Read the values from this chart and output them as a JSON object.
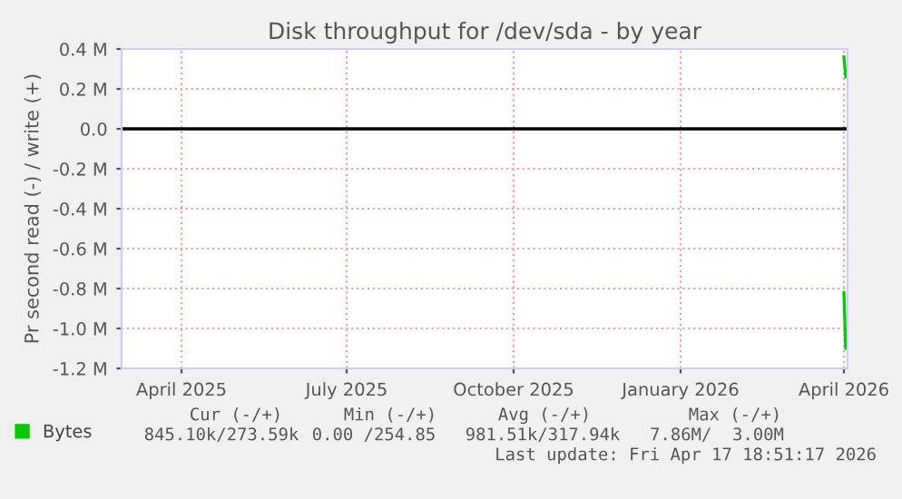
{
  "chart_data": {
    "type": "line",
    "title": "Disk throughput for /dev/sda - by year",
    "ylabel": "Pr second read (-) / write (+)",
    "xlim": [
      "2025-03-13",
      "2026-04-17"
    ],
    "xticks": [
      {
        "value": "2025-04-15",
        "label": "April 2025"
      },
      {
        "value": "2025-07-15",
        "label": "July 2025"
      },
      {
        "value": "2025-10-15",
        "label": "October 2025"
      },
      {
        "value": "2026-01-15",
        "label": "January 2026"
      },
      {
        "value": "2026-04-15",
        "label": "April 2026"
      }
    ],
    "ylim": [
      -1200000,
      400000
    ],
    "yticks": [
      {
        "value": 400000,
        "label": "0.4 M"
      },
      {
        "value": 200000,
        "label": "0.2 M"
      },
      {
        "value": 0,
        "label": "0.0"
      },
      {
        "value": -200000,
        "label": "-0.2 M"
      },
      {
        "value": -400000,
        "label": "-0.4 M"
      },
      {
        "value": -600000,
        "label": "-0.6 M"
      },
      {
        "value": -800000,
        "label": "-0.8 M"
      },
      {
        "value": -1000000,
        "label": "-1.0 M"
      },
      {
        "value": -1200000,
        "label": "-1.2 M"
      }
    ],
    "series": [
      {
        "name": "Bytes",
        "color": "#00cc00",
        "x": [
          "2026-04-15",
          "2026-04-16"
        ],
        "values": [
          360000,
          260000
        ]
      },
      {
        "color": "#00cc00",
        "x": [
          "2026-04-15",
          "2026-04-16"
        ],
        "values": [
          -820000,
          -1100000
        ]
      }
    ],
    "ref_lines": [
      {
        "axis": "y",
        "value": 0,
        "color": "#000000"
      }
    ],
    "grid": true,
    "legend": "bottom",
    "annotations": [
      "Cur (-/+)",
      "Min (-/+)",
      "Avg (-/+)",
      "Max (-/+)",
      "845.10k/273.59k",
      "0.00 /254.85",
      "981.51k/317.94k",
      "7.86M/  3.00M",
      "Last update: Fri Apr 17 18:51:17 2026"
    ]
  }
}
